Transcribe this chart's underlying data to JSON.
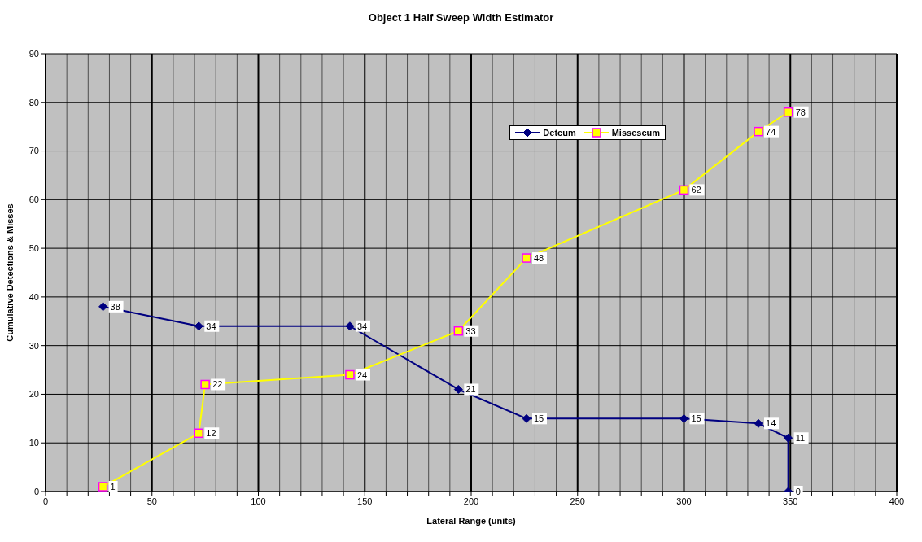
{
  "chart_data": {
    "type": "line",
    "title": "Object 1 Half Sweep Width Estimator",
    "xlabel": "Lateral Range (units)",
    "ylabel": "Cumulative Detections & Misses",
    "series": [
      {
        "name": "Detcum",
        "color": "#000080",
        "marker": "diamond",
        "x": [
          27,
          72,
          143,
          194,
          226,
          300,
          335,
          349,
          349
        ],
        "values": [
          38,
          34,
          34,
          21,
          15,
          15,
          14,
          11,
          0
        ]
      },
      {
        "name": "Missescum",
        "color": "#ffff00",
        "marker": "square",
        "x": [
          27,
          72,
          75,
          143,
          194,
          226,
          300,
          335,
          349
        ],
        "values": [
          1,
          12,
          22,
          24,
          33,
          48,
          62,
          74,
          78
        ]
      }
    ],
    "xlim": [
      0,
      400
    ],
    "xticks": [
      0,
      {
        "value": 10,
        "label": null
      },
      {
        "value": 20,
        "label": null
      },
      {
        "value": 30,
        "label": null
      },
      {
        "value": 40,
        "label": null
      },
      50,
      {
        "value": 60,
        "label": null
      },
      {
        "value": 70,
        "label": null
      },
      {
        "value": 80,
        "label": null
      },
      {
        "value": 90,
        "label": null
      },
      100,
      {
        "value": 110,
        "label": null
      },
      {
        "value": 120,
        "label": null
      },
      {
        "value": 130,
        "label": null
      },
      {
        "value": 140,
        "label": null
      },
      150,
      {
        "value": 160,
        "label": null
      },
      {
        "value": 170,
        "label": null
      },
      {
        "value": 180,
        "label": null
      },
      {
        "value": 190,
        "label": null
      },
      200,
      {
        "value": 210,
        "label": null
      },
      {
        "value": 220,
        "label": null
      },
      {
        "value": 230,
        "label": null
      },
      {
        "value": 240,
        "label": null
      },
      250,
      {
        "value": 260,
        "label": null
      },
      {
        "value": 270,
        "label": null
      },
      {
        "value": 280,
        "label": null
      },
      {
        "value": 290,
        "label": null
      },
      300,
      {
        "value": 310,
        "label": null
      },
      {
        "value": 320,
        "label": null
      },
      {
        "value": 330,
        "label": null
      },
      {
        "value": 340,
        "label": null
      },
      350,
      {
        "value": 360,
        "label": null
      },
      {
        "value": 370,
        "label": null
      },
      {
        "value": 380,
        "label": null
      },
      {
        "value": 390,
        "label": null
      },
      400
    ],
    "ylim": [
      0,
      90
    ],
    "yticks": [
      0,
      10,
      20,
      30,
      40,
      50,
      60,
      70,
      80,
      90
    ],
    "grid": true,
    "legend": "top right",
    "data_labels": true
  }
}
